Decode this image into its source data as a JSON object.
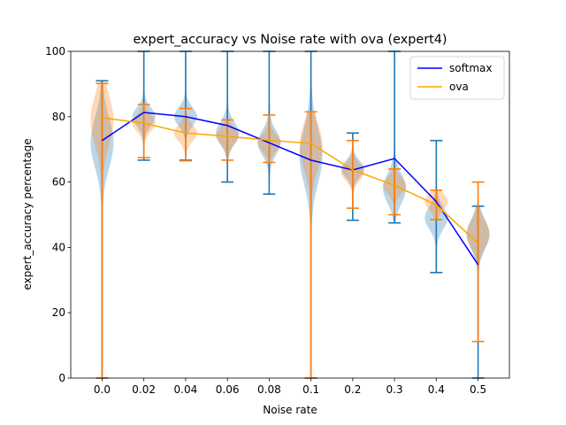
{
  "chart_data": {
    "type": "violin-line",
    "title": "expert_accuracy vs Noise rate with ova (expert4)",
    "xlabel": "Noise rate",
    "ylabel": "expert_accuracy percentage",
    "ylim": [
      0,
      100
    ],
    "yticks": [
      0,
      20,
      40,
      60,
      80,
      100
    ],
    "categories": [
      "0.0",
      "0.02",
      "0.04",
      "0.06",
      "0.08",
      "0.1",
      "0.2",
      "0.3",
      "0.4",
      "0.5"
    ],
    "legend_position": "top-right",
    "series": [
      {
        "name": "softmax",
        "line_color": "#0000ff",
        "violin_fill": "#1f77b4",
        "whisker_color": "#1f77b4",
        "means": [
          72.7,
          81.3,
          80.0,
          77.3,
          72.0,
          66.7,
          63.7,
          67.2,
          54.0,
          34.7
        ],
        "mins": [
          0,
          66.7,
          66.7,
          60.0,
          56.3,
          0,
          48.3,
          47.5,
          32.3,
          0
        ],
        "maxs": [
          91.0,
          100,
          100,
          100,
          100,
          100,
          75.0,
          100,
          72.7,
          52.6
        ],
        "peaks": [
          72,
          80,
          80,
          75,
          72,
          68,
          64,
          58,
          49,
          44
        ]
      },
      {
        "name": "ova",
        "line_color": "#ffa500",
        "violin_fill": "#ff7f0e",
        "whisker_color": "#ff7f0e",
        "means": [
          79.7,
          78.0,
          75.0,
          74.0,
          72.8,
          71.8,
          63.7,
          59.0,
          53.0,
          41.3
        ],
        "mins": [
          0,
          67.5,
          66.5,
          66.7,
          66.0,
          0,
          52.0,
          50.0,
          48.5,
          11.2
        ],
        "maxs": [
          90.2,
          83.7,
          82.5,
          79.0,
          80.5,
          81.5,
          72.7,
          64.0,
          57.5,
          60.0
        ],
        "peaks": [
          79,
          78,
          75,
          74,
          72,
          71,
          63,
          59,
          54,
          44
        ]
      }
    ]
  }
}
